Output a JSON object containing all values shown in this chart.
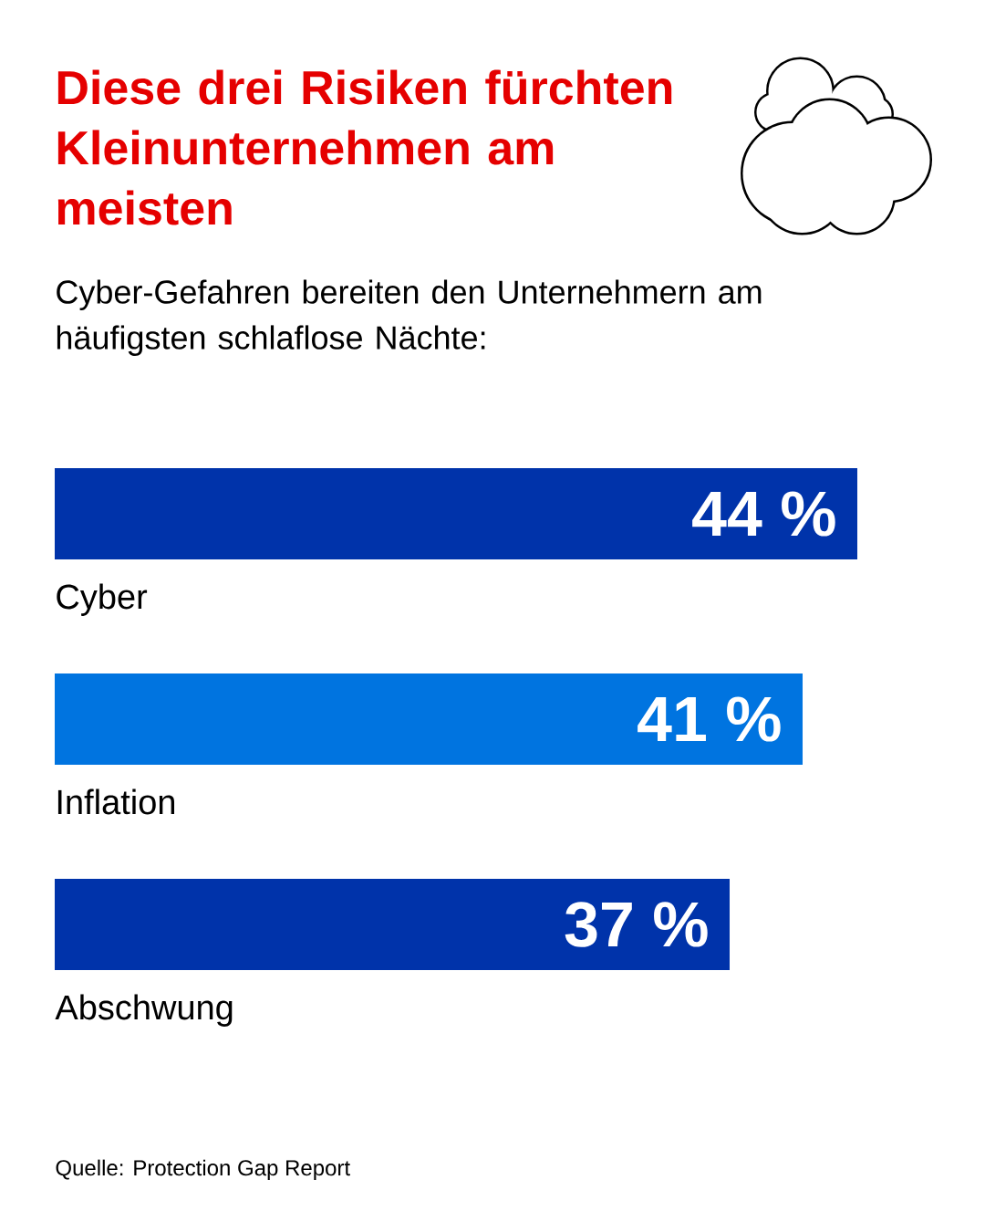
{
  "chart_data": {
    "type": "bar",
    "orientation": "horizontal",
    "title": "Diese drei Risiken fürchten Kleinunternehmen am meisten",
    "subtitle": "Cyber-Gefahren bereiten den Unternehmern am häufigsten schlaflose Nächte:",
    "categories": [
      "Cyber",
      "Inflation",
      "Abschwung"
    ],
    "values": [
      44,
      41,
      37
    ],
    "colors": [
      "#0033aa",
      "#0074e0",
      "#0033aa"
    ],
    "value_labels": [
      "44 %",
      "41 %",
      "37 %"
    ],
    "annotations": [
      "Quelle: Protection Gap Report"
    ]
  }
}
